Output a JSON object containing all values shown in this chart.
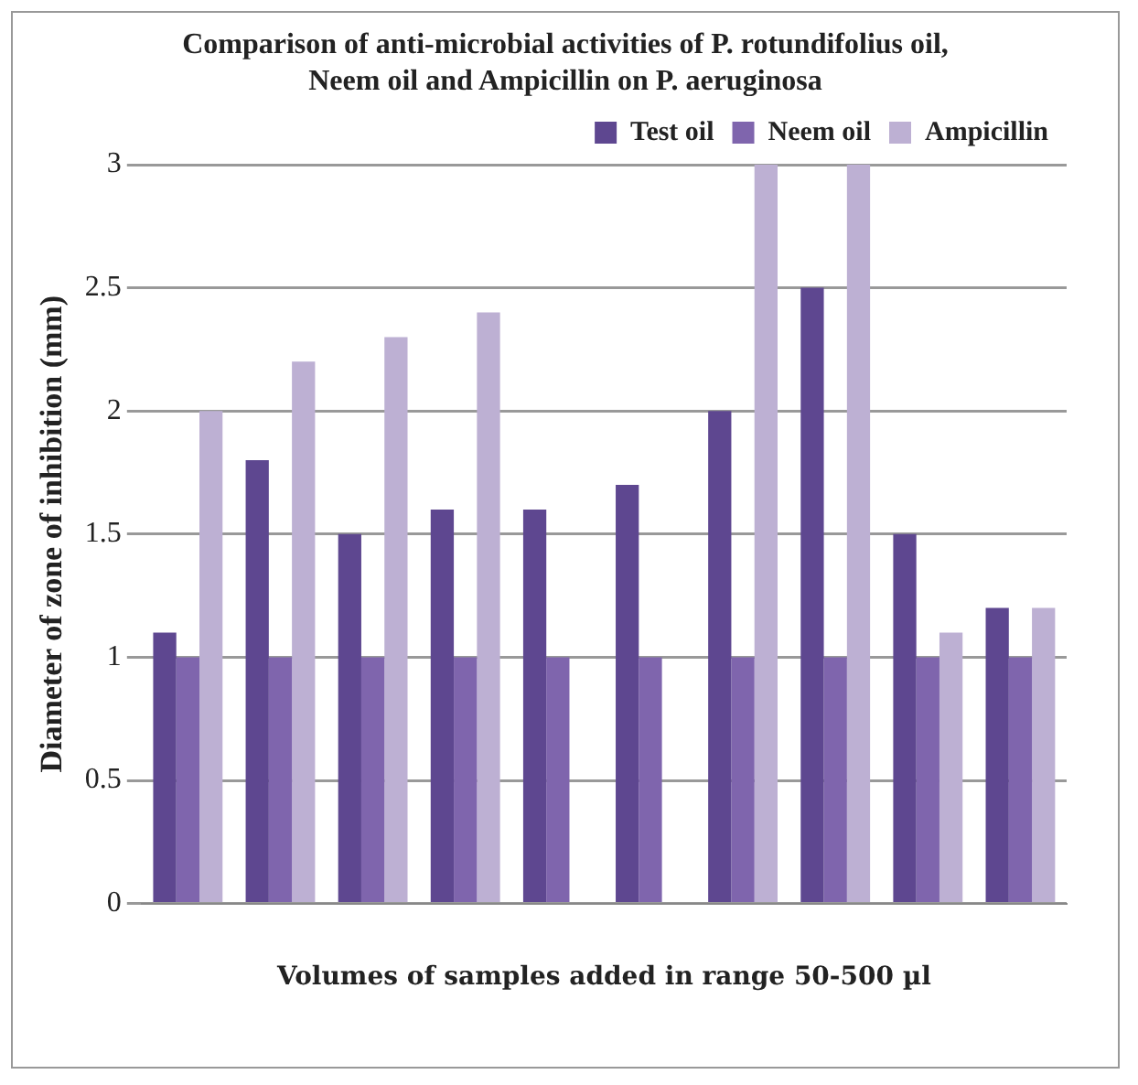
{
  "chart_data": {
    "type": "bar",
    "title": "Comparison of anti-microbial activities  of P. rotundifolius oil, Neem oil and Ampicillin on P. aeruginosa",
    "xlabel": "Volumes of samples added in range 50-500 µl",
    "ylabel": "Diameter of zone of inhibition (mm)",
    "categories": [
      null,
      null,
      null,
      null,
      null,
      null,
      null,
      null,
      null,
      null
    ],
    "series": [
      {
        "name": "Test oil",
        "color": "#5e4790",
        "values": [
          1.1,
          1.8,
          1.5,
          1.6,
          1.6,
          1.7,
          2.0,
          2.5,
          1.5,
          1.2
        ]
      },
      {
        "name": "Neem oil",
        "color": "#7f65ad",
        "values": [
          1,
          1,
          1,
          1,
          1,
          1,
          1,
          1,
          1,
          1
        ]
      },
      {
        "name": "Ampicillin",
        "color": "#bdb0d3",
        "values": [
          2.0,
          2.2,
          2.3,
          2.4,
          null,
          null,
          3.0,
          3.0,
          1.1,
          1.2
        ]
      }
    ],
    "ylim": [
      0,
      3
    ],
    "yticks": [
      0,
      0.5,
      1,
      1.5,
      2,
      2.5,
      3
    ],
    "grid": "y",
    "legend": "top right"
  }
}
